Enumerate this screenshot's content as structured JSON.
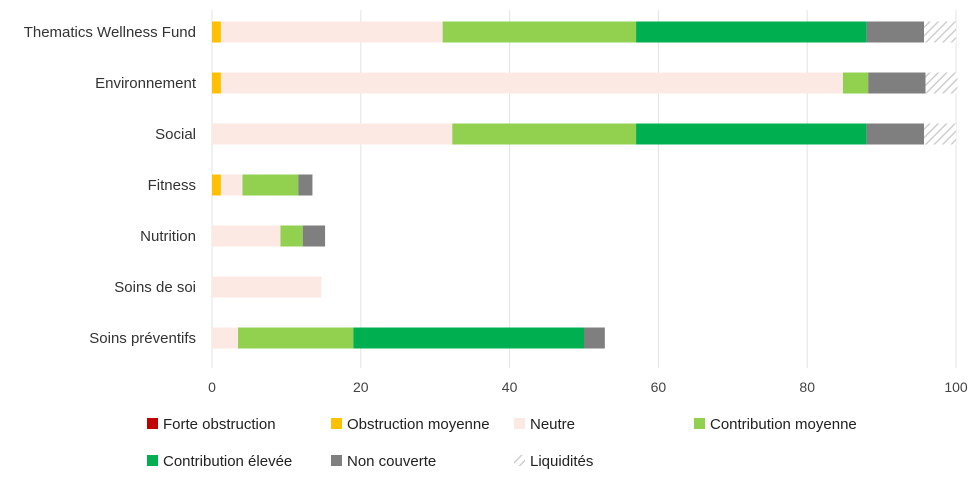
{
  "chart_data": {
    "type": "bar",
    "orientation": "horizontal",
    "stacked": true,
    "title": "",
    "xlabel": "",
    "ylabel": "",
    "xlim": [
      0,
      100
    ],
    "x_ticks": [
      0,
      20,
      40,
      60,
      80,
      100
    ],
    "grid": "vertical",
    "legend_position": "bottom",
    "categories": [
      "Thematics Wellness Fund",
      "Environnement",
      "Social",
      "Fitness",
      "Nutrition",
      "Soins de soi",
      "Soins préventifs"
    ],
    "series": [
      {
        "name": "Forte obstruction",
        "color": "#c00000",
        "pattern": "solid",
        "values": [
          0,
          0,
          0,
          0,
          0,
          0,
          0
        ]
      },
      {
        "name": "Obstruction moyenne",
        "color": "#ffc000",
        "pattern": "solid",
        "values": [
          1.2,
          1.2,
          0,
          1.2,
          0,
          0,
          0
        ]
      },
      {
        "name": "Neutre",
        "color": "#fde9e4",
        "pattern": "solid",
        "values": [
          29.8,
          83.6,
          32.3,
          2.9,
          9.2,
          14.7,
          3.5
        ]
      },
      {
        "name": "Contribution moyenne",
        "color": "#92d050",
        "pattern": "solid",
        "values": [
          26.0,
          3.4,
          24.7,
          7.5,
          3.0,
          0,
          15.5
        ]
      },
      {
        "name": "Contribution élevée",
        "color": "#00b050",
        "pattern": "solid",
        "values": [
          31.0,
          0,
          31.0,
          0,
          0,
          0,
          31.0
        ]
      },
      {
        "name": "Non couverte",
        "color": "#7f7f7f",
        "pattern": "solid",
        "values": [
          7.7,
          7.7,
          7.7,
          1.9,
          3.0,
          0,
          2.8
        ]
      },
      {
        "name": "Liquidités",
        "color": "#d9d9d9",
        "pattern": "hatched",
        "values": [
          4.3,
          4.3,
          4.3,
          0,
          0,
          0,
          0
        ]
      }
    ]
  }
}
